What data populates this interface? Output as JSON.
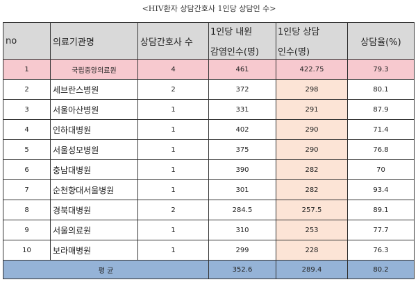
{
  "caption": "<HIV환자 상담간호사 1인당 상담인 수>",
  "headers": {
    "no": "no",
    "hospital": "의료기관명",
    "nurses": "상담간호사 수",
    "per_nurse_line1": "1인당 내원",
    "per_nurse_line2": "감염인수(명)",
    "counseled_line1": "1인당 상담",
    "counseled_line2": "인수(명)",
    "rate": "상담율(%)"
  },
  "rows": [
    {
      "no": "1",
      "hospital": "국립중앙의료원",
      "nurses": "4",
      "patients": "461",
      "counseled": "422.75",
      "rate": "79.3"
    },
    {
      "no": "2",
      "hospital": "세브란스병원",
      "nurses": "2",
      "patients": "372",
      "counseled": "298",
      "rate": "80.1"
    },
    {
      "no": "3",
      "hospital": "서울아산병원",
      "nurses": "1",
      "patients": "331",
      "counseled": "291",
      "rate": "87.9"
    },
    {
      "no": "4",
      "hospital": "인하대병원",
      "nurses": "1",
      "patients": "402",
      "counseled": "290",
      "rate": "71.4"
    },
    {
      "no": "5",
      "hospital": "서울성모병원",
      "nurses": "1",
      "patients": "375",
      "counseled": "290",
      "rate": "76.8"
    },
    {
      "no": "6",
      "hospital": "충남대병원",
      "nurses": "1",
      "patients": "390",
      "counseled": "282",
      "rate": "70"
    },
    {
      "no": "7",
      "hospital": "순천향대서울병원",
      "nurses": "1",
      "patients": "301",
      "counseled": "282",
      "rate": "93.4"
    },
    {
      "no": "8",
      "hospital": "경북대병원",
      "nurses": "2",
      "patients": "284.5",
      "counseled": "257.5",
      "rate": "89.1"
    },
    {
      "no": "9",
      "hospital": "서울의료원",
      "nurses": "1",
      "patients": "310",
      "counseled": "253",
      "rate": "77.7"
    },
    {
      "no": "10",
      "hospital": "보라매병원",
      "nurses": "1",
      "patients": "299",
      "counseled": "228",
      "rate": "76.3"
    }
  ],
  "average": {
    "label": "평 균",
    "patients": "352.6",
    "counseled": "289.4",
    "rate": "80.2"
  },
  "colors": {
    "header_bg": "#d9d9d9",
    "highlight_row": "#f7c9cf",
    "highlight_col": "#fce4d6",
    "average_bg": "#95b3d7"
  }
}
